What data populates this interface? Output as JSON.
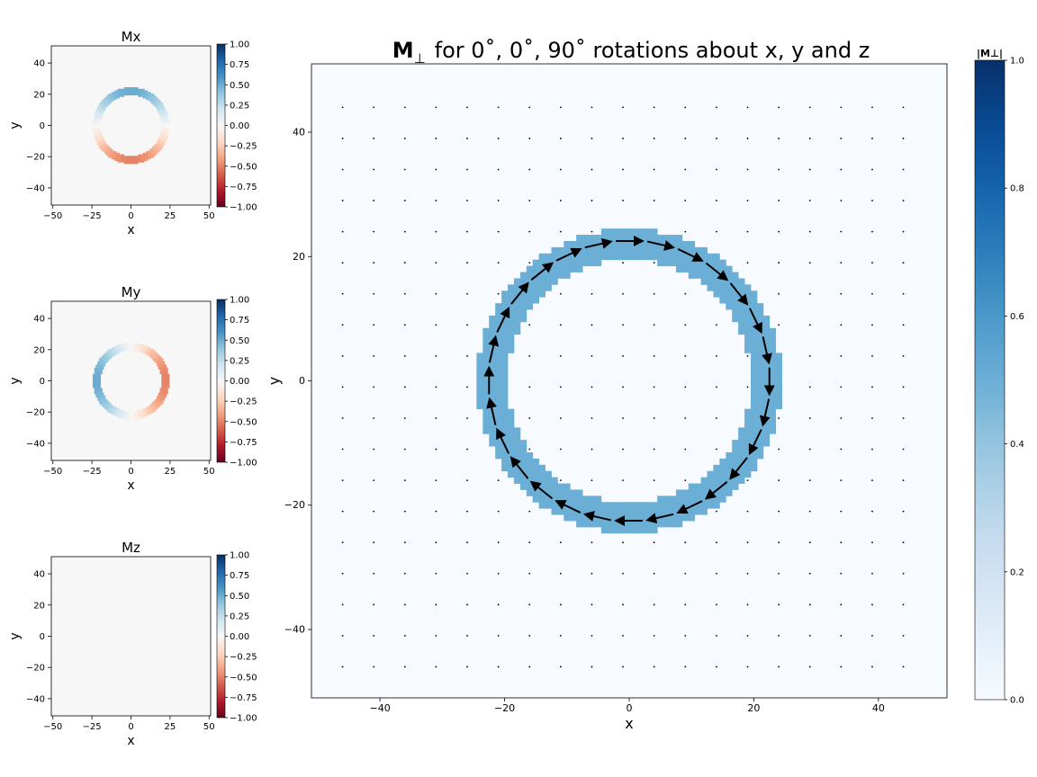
{
  "figure": {
    "main_title_bold": "M",
    "main_title_sub": "⊥",
    "main_title_rest": "for 0˚, 0˚, 90˚ rotations about x, y and z"
  },
  "chart_data": [
    {
      "type": "heatmap",
      "title": "Mx",
      "xlabel": "x",
      "ylabel": "y",
      "xlim": [
        -51,
        51
      ],
      "ylim": [
        -51,
        51
      ],
      "xticks": [
        "−50",
        "−25",
        "0",
        "25",
        "50"
      ],
      "xtick_values": [
        -50,
        -25,
        0,
        25,
        50
      ],
      "yticks": [
        "−40",
        "−20",
        "0",
        "20",
        "40"
      ],
      "ytick_values": [
        -40,
        -20,
        0,
        20,
        40
      ],
      "field": "mx",
      "ring": {
        "inner_radius": 20,
        "outer_radius": 25
      },
      "colorbar": {
        "colormap": "RdBu",
        "range": [
          -1,
          1
        ],
        "ticks": [
          "1.00",
          "0.75",
          "0.50",
          "0.25",
          "0.00",
          "−0.25",
          "−0.50",
          "−0.75",
          "−1.00"
        ],
        "tick_values": [
          1,
          0.75,
          0.5,
          0.25,
          0,
          -0.25,
          -0.5,
          -0.75,
          -1
        ]
      }
    },
    {
      "type": "heatmap",
      "title": "My",
      "xlabel": "x",
      "ylabel": "y",
      "xlim": [
        -51,
        51
      ],
      "ylim": [
        -51,
        51
      ],
      "xticks": [
        "−50",
        "−25",
        "0",
        "25",
        "50"
      ],
      "xtick_values": [
        -50,
        -25,
        0,
        25,
        50
      ],
      "yticks": [
        "−40",
        "−20",
        "0",
        "20",
        "40"
      ],
      "ytick_values": [
        -40,
        -20,
        0,
        20,
        40
      ],
      "field": "my",
      "ring": {
        "inner_radius": 20,
        "outer_radius": 25
      },
      "colorbar": {
        "colormap": "RdBu",
        "range": [
          -1,
          1
        ],
        "ticks": [
          "1.00",
          "0.75",
          "0.50",
          "0.25",
          "0.00",
          "−0.25",
          "−0.50",
          "−0.75",
          "−1.00"
        ],
        "tick_values": [
          1,
          0.75,
          0.5,
          0.25,
          0,
          -0.25,
          -0.5,
          -0.75,
          -1
        ]
      }
    },
    {
      "type": "heatmap",
      "title": "Mz",
      "xlabel": "x",
      "ylabel": "y",
      "xlim": [
        -51,
        51
      ],
      "ylim": [
        -51,
        51
      ],
      "xticks": [
        "−50",
        "−25",
        "0",
        "25",
        "50"
      ],
      "xtick_values": [
        -50,
        -25,
        0,
        25,
        50
      ],
      "yticks": [
        "−40",
        "−20",
        "0",
        "20",
        "40"
      ],
      "ytick_values": [
        -40,
        -20,
        0,
        20,
        40
      ],
      "field": "mz",
      "ring": {
        "inner_radius": 20,
        "outer_radius": 25
      },
      "colorbar": {
        "colormap": "RdBu",
        "range": [
          -1,
          1
        ],
        "ticks": [
          "1.00",
          "0.75",
          "0.50",
          "0.25",
          "0.00",
          "−0.25",
          "−0.50",
          "−0.75",
          "−1.00"
        ],
        "tick_values": [
          1,
          0.75,
          0.5,
          0.25,
          0,
          -0.25,
          -0.5,
          -0.75,
          -1
        ]
      }
    },
    {
      "type": "heatmap",
      "subtype": "quiver",
      "xlabel": "x",
      "ylabel": "y",
      "xlim": [
        -51,
        51
      ],
      "ylim": [
        -51,
        51
      ],
      "xticks": [
        "−40",
        "−20",
        "0",
        "20",
        "40"
      ],
      "xtick_values": [
        -40,
        -20,
        0,
        20,
        40
      ],
      "yticks": [
        "−40",
        "−20",
        "0",
        "20",
        "40"
      ],
      "ytick_values": [
        -40,
        -20,
        0,
        20,
        40
      ],
      "ring": {
        "inner_radius": 20,
        "outer_radius": 25,
        "magnitude": 0.5
      },
      "quiver_grid": [
        -46,
        -41,
        -36,
        -31,
        -26,
        -21,
        -16,
        -11,
        -6,
        -1,
        4,
        9,
        14,
        19,
        24,
        29,
        34,
        39,
        44
      ],
      "arrow_count": 28,
      "arrow_radius": 22.5,
      "arrow_length": 4.3,
      "circulation": "clockwise",
      "colorbar": {
        "label": "|M⊥|",
        "colormap": "Blues",
        "range": [
          0,
          1
        ],
        "ticks": [
          "1.0",
          "0.8",
          "0.6",
          "0.4",
          "0.2",
          "0.0"
        ],
        "tick_values": [
          1,
          0.8,
          0.6,
          0.4,
          0.2,
          0
        ]
      }
    }
  ]
}
